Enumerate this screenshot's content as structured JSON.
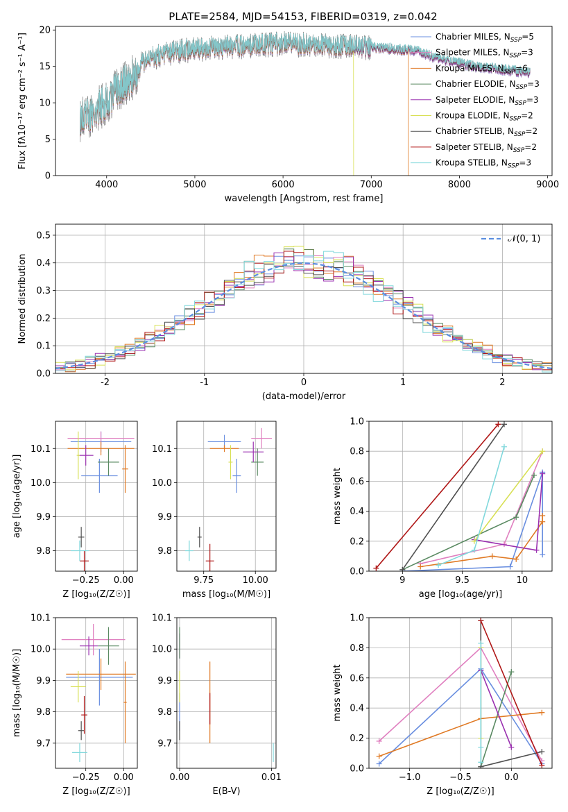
{
  "figure_title": "PLATE=2584, MJD=54153, FIBERID=0319, z=0.042",
  "colors": {
    "chabrier_miles": "#6a8fe0",
    "salpeter_miles": "#e080c0",
    "kroupa_miles": "#e07a25",
    "chabrier_elodie": "#5a8a62",
    "salpeter_elodie": "#9a30b0",
    "kroupa_elodie": "#d8e055",
    "chabrier_stelib": "#505050",
    "salpeter_stelib": "#b01818",
    "kroupa_stelib": "#80d8dc",
    "normal_curve": "#5b8ee0",
    "grid": "#b0b0b0"
  },
  "legend_spectrum": [
    {
      "text": "Chabrier MILES, N",
      "sub": "SSP",
      "tail": "=5",
      "color": "#6a8fe0"
    },
    {
      "text": "Salpeter MILES, N",
      "sub": "SSP",
      "tail": "=3",
      "color": "#e080c0"
    },
    {
      "text": "Kroupa MILES, N",
      "sub": "SSP",
      "tail": "=6",
      "color": "#e07a25"
    },
    {
      "text": "Chabrier ELODIE, N",
      "sub": "SSP",
      "tail": "=3",
      "color": "#5a8a62"
    },
    {
      "text": "Salpeter ELODIE, N",
      "sub": "SSP",
      "tail": "=3",
      "color": "#9a30b0"
    },
    {
      "text": "Kroupa ELODIE, N",
      "sub": "SSP",
      "tail": "=2",
      "color": "#d8e055"
    },
    {
      "text": "Chabrier STELIB, N",
      "sub": "SSP",
      "tail": "=2",
      "color": "#505050"
    },
    {
      "text": "Salpeter STELIB, N",
      "sub": "SSP",
      "tail": "=2",
      "color": "#b01818"
    },
    {
      "text": "Kroupa STELIB, N",
      "sub": "SSP",
      "tail": "=3",
      "color": "#80d8dc"
    }
  ],
  "chart_data": [
    {
      "type": "line",
      "title": "PLATE=2584, MJD=54153, FIBERID=0319, z=0.042",
      "xlabel": "wavelength [Angstrom, rest frame]",
      "ylabel": "Flux [fλ10⁻¹⁷ erg cm⁻² s⁻¹ A⁻¹]",
      "xlim": [
        3420,
        9050
      ],
      "ylim": [
        0,
        20.5
      ],
      "xticks": [
        4000,
        5000,
        6000,
        7000,
        8000,
        9000
      ],
      "yticks": [
        0,
        5,
        10,
        15,
        20
      ],
      "continuum": {
        "x": [
          3700,
          3800,
          3900,
          4000,
          4100,
          4200,
          4300,
          4400,
          4500,
          4700,
          5000,
          5300,
          5600,
          6000,
          6500,
          7000,
          7500,
          7800,
          8200,
          8800
        ],
        "y": [
          8.0,
          8.5,
          9.5,
          10.5,
          11.8,
          12.8,
          13.8,
          15.5,
          16.3,
          17.0,
          17.5,
          17.8,
          18.0,
          18.3,
          18.0,
          17.7,
          17.2,
          16.0,
          15.0,
          14.2
        ]
      },
      "features": [
        {
          "series": "kroupa_elodie",
          "description_x": 6800,
          "drop_to": 0
        },
        {
          "series": "kroupa_miles",
          "description_x": 7420,
          "drop_to": 0
        }
      ],
      "legend": "upper right"
    },
    {
      "type": "line",
      "xlabel": "(data-model)/error",
      "ylabel": "Normed distribution",
      "xlim": [
        -2.5,
        2.5
      ],
      "ylim": [
        0,
        0.54
      ],
      "xticks": [
        -2,
        -1,
        0,
        1,
        2
      ],
      "yticks": [
        0.0,
        0.1,
        0.2,
        0.3,
        0.4,
        0.5
      ],
      "bin_edges_start": -2.5,
      "bin_width": 0.1,
      "histogram_sigma": 1.0,
      "normal_legend": "𝒩(0, 1)",
      "legend": "upper right"
    },
    {
      "type": "scatter",
      "xlabel": "Z [log₁₀(Z/Z☉)]",
      "ylabel": "age  [log₁₀(age/yr)]",
      "xlim": [
        -0.45,
        0.09
      ],
      "ylim": [
        9.74,
        10.18
      ],
      "xticks": [
        -0.25,
        0.0
      ],
      "xtick_labels": [
        "−0.25",
        "0.00"
      ],
      "yticks": [
        9.8,
        9.9,
        10.0,
        10.1
      ],
      "points": [
        {
          "series": "chabrier_miles",
          "x": -0.16,
          "y": 10.02,
          "xerr": 0.12,
          "yerr": 0.05
        },
        {
          "series": "chabrier_miles",
          "x": -0.15,
          "y": 10.12,
          "xerr": 0.2,
          "yerr": 0.03
        },
        {
          "series": "salpeter_miles",
          "x": -0.15,
          "y": 10.13,
          "xerr": 0.22,
          "yerr": 0.02
        },
        {
          "series": "kroupa_miles",
          "x": 0.01,
          "y": 10.04,
          "xerr": 0.02,
          "yerr": 0.07
        },
        {
          "series": "kroupa_miles",
          "x": -0.15,
          "y": 10.1,
          "xerr": 0.22,
          "yerr": 0.02
        },
        {
          "series": "chabrier_elodie",
          "x": -0.1,
          "y": 10.06,
          "xerr": 0.07,
          "yerr": 0.04
        },
        {
          "series": "salpeter_elodie",
          "x": -0.25,
          "y": 10.08,
          "xerr": 0.05,
          "yerr": 0.03
        },
        {
          "series": "kroupa_elodie",
          "x": -0.3,
          "y": 10.08,
          "xerr": 0.01,
          "yerr": 0.07
        },
        {
          "series": "chabrier_stelib",
          "x": -0.28,
          "y": 9.84,
          "xerr": 0.02,
          "yerr": 0.03
        },
        {
          "series": "salpeter_stelib",
          "x": -0.26,
          "y": 9.77,
          "xerr": 0.03,
          "yerr": 0.03
        },
        {
          "series": "kroupa_stelib",
          "x": -0.29,
          "y": 9.8,
          "xerr": 0.06,
          "yerr": 0.03
        }
      ]
    },
    {
      "type": "scatter",
      "xlabel": "mass [log₁₀(M/M☉)]",
      "ylabel": "",
      "xlim": [
        9.62,
        10.1
      ],
      "ylim": [
        9.74,
        10.18
      ],
      "xticks": [
        9.75,
        10.0
      ],
      "xtick_labels": [
        "9.75",
        "10.00"
      ],
      "yticks": [
        9.8,
        9.9,
        10.0,
        10.1
      ],
      "points": [
        {
          "series": "chabrier_miles",
          "x": 9.91,
          "y": 10.02,
          "xerr": 0.02,
          "yerr": 0.05
        },
        {
          "series": "chabrier_miles",
          "x": 9.85,
          "y": 10.12,
          "xerr": 0.08,
          "yerr": 0.02
        },
        {
          "series": "salpeter_miles",
          "x": 10.03,
          "y": 10.13,
          "xerr": 0.05,
          "yerr": 0.03
        },
        {
          "series": "kroupa_miles",
          "x": 9.85,
          "y": 10.1,
          "xerr": 0.07,
          "yerr": 0.01
        },
        {
          "series": "chabrier_elodie",
          "x": 10.01,
          "y": 10.06,
          "xerr": 0.03,
          "yerr": 0.04
        },
        {
          "series": "salpeter_elodie",
          "x": 9.99,
          "y": 10.09,
          "xerr": 0.05,
          "yerr": 0.03
        },
        {
          "series": "kroupa_elodie",
          "x": 9.88,
          "y": 10.06,
          "xerr": 0.01,
          "yerr": 0.05
        },
        {
          "series": "chabrier_stelib",
          "x": 9.73,
          "y": 9.84,
          "xerr": 0.01,
          "yerr": 0.03
        },
        {
          "series": "salpeter_stelib",
          "x": 9.78,
          "y": 9.77,
          "xerr": 0.02,
          "yerr": 0.05
        },
        {
          "series": "kroupa_stelib",
          "x": 9.68,
          "y": 9.8,
          "xerr": 0.02,
          "yerr": 0.03
        }
      ]
    },
    {
      "type": "line",
      "xlabel": "age  [log₁₀(age/yr)]",
      "ylabel": "mass weight",
      "xlim": [
        8.72,
        10.25
      ],
      "ylim": [
        0,
        1.0
      ],
      "xticks": [
        9.0,
        9.5,
        10.0
      ],
      "yticks": [
        0.0,
        0.2,
        0.4,
        0.6,
        0.8,
        1.0
      ],
      "series": [
        {
          "name": "Chabrier MILES",
          "key": "chabrier_miles",
          "x": [
            9.0,
            9.9,
            10.17,
            10.17
          ],
          "y": [
            0.0,
            0.03,
            0.66,
            0.11
          ]
        },
        {
          "name": "Salpeter MILES",
          "key": "salpeter_miles",
          "x": [
            9.15,
            9.85,
            10.17
          ],
          "y": [
            0.05,
            0.18,
            0.8
          ]
        },
        {
          "name": "Kroupa MILES",
          "key": "kroupa_miles",
          "x": [
            9.15,
            9.75,
            9.95,
            10.17,
            10.17
          ],
          "y": [
            0.03,
            0.1,
            0.08,
            0.33,
            0.37
          ]
        },
        {
          "name": "Chabrier ELODIE",
          "key": "chabrier_elodie",
          "x": [
            9.0,
            9.95,
            10.1
          ],
          "y": [
            0.01,
            0.36,
            0.64
          ]
        },
        {
          "name": "Salpeter ELODIE",
          "key": "salpeter_elodie",
          "x": [
            9.6,
            10.12,
            10.17
          ],
          "y": [
            0.21,
            0.14,
            0.65
          ]
        },
        {
          "name": "Kroupa ELODIE",
          "key": "kroupa_elodie",
          "x": [
            9.6,
            10.17
          ],
          "y": [
            0.2,
            0.8
          ]
        },
        {
          "name": "Chabrier STELIB",
          "key": "chabrier_stelib",
          "x": [
            9.0,
            9.85
          ],
          "y": [
            0.01,
            0.98
          ]
        },
        {
          "name": "Salpeter STELIB",
          "key": "salpeter_stelib",
          "x": [
            8.78,
            9.8
          ],
          "y": [
            0.02,
            0.98
          ]
        },
        {
          "name": "Kroupa STELIB",
          "key": "kroupa_stelib",
          "x": [
            9.3,
            9.6,
            9.85
          ],
          "y": [
            0.04,
            0.14,
            0.83
          ]
        }
      ]
    },
    {
      "type": "scatter",
      "xlabel": "Z [log₁₀(Z/Z☉)]",
      "ylabel": "mass [log₁₀(M/M☉)]",
      "xlim": [
        -0.45,
        0.09
      ],
      "ylim": [
        9.62,
        10.1
      ],
      "xticks": [
        -0.25,
        0.0
      ],
      "xtick_labels": [
        "−0.25",
        "0.00"
      ],
      "yticks": [
        9.7,
        9.8,
        9.9,
        10.0,
        10.1
      ],
      "points": [
        {
          "series": "chabrier_miles",
          "x": -0.16,
          "y": 9.91,
          "xerr": 0.22,
          "yerr": 0.09
        },
        {
          "series": "salpeter_miles",
          "x": -0.2,
          "y": 10.03,
          "xerr": 0.21,
          "yerr": 0.05
        },
        {
          "series": "kroupa_miles",
          "x": -0.15,
          "y": 9.92,
          "xerr": 0.23,
          "yerr": 0.05
        },
        {
          "series": "kroupa_miles",
          "x": 0.01,
          "y": 9.83,
          "xerr": 0.01,
          "yerr": 0.13
        },
        {
          "series": "chabrier_elodie",
          "x": -0.1,
          "y": 10.01,
          "xerr": 0.07,
          "yerr": 0.06
        },
        {
          "series": "salpeter_elodie",
          "x": -0.23,
          "y": 10.01,
          "xerr": 0.06,
          "yerr": 0.03
        },
        {
          "series": "kroupa_elodie",
          "x": -0.3,
          "y": 9.88,
          "xerr": 0.05,
          "yerr": 0.05
        },
        {
          "series": "chabrier_stelib",
          "x": -0.28,
          "y": 9.74,
          "xerr": 0.02,
          "yerr": 0.03
        },
        {
          "series": "salpeter_stelib",
          "x": -0.26,
          "y": 9.79,
          "xerr": 0.02,
          "yerr": 0.06
        },
        {
          "series": "kroupa_stelib",
          "x": -0.29,
          "y": 9.67,
          "xerr": 0.05,
          "yerr": 0.03
        }
      ]
    },
    {
      "type": "scatter",
      "xlabel": "E(B-V)",
      "ylabel": "",
      "xlim": [
        -0.0003,
        0.0105
      ],
      "ylim": [
        9.62,
        10.1
      ],
      "xticks": [
        0.0,
        0.01
      ],
      "xtick_labels": [
        "0.00",
        "0.01"
      ],
      "yticks": [
        9.7,
        9.8,
        9.9,
        10.0,
        10.1
      ],
      "points": [
        {
          "series": "chabrier_miles",
          "x": 0.0,
          "y": 9.8,
          "xerr": 0.0,
          "yerr": 0.06
        },
        {
          "series": "salpeter_elodie",
          "x": 0.0,
          "y": 10.01,
          "xerr": 0.0,
          "yerr": 0.04
        },
        {
          "series": "kroupa_elodie",
          "x": 0.0,
          "y": 9.88,
          "xerr": 0.0,
          "yerr": 0.05
        },
        {
          "series": "chabrier_stelib",
          "x": 0.0,
          "y": 9.74,
          "xerr": 0.0,
          "yerr": 0.03
        },
        {
          "series": "chabrier_elodie",
          "x": 0.0,
          "y": 10.02,
          "xerr": 0.0,
          "yerr": 0.05
        },
        {
          "series": "kroupa_miles",
          "x": 0.0033,
          "y": 9.83,
          "xerr": 0.0,
          "yerr": 0.13
        },
        {
          "series": "salpeter_stelib",
          "x": 0.0033,
          "y": 9.81,
          "xerr": 0.0,
          "yerr": 0.05
        },
        {
          "series": "kroupa_stelib",
          "x": 0.0102,
          "y": 9.67,
          "xerr": 0.0,
          "yerr": 0.03
        }
      ]
    },
    {
      "type": "line",
      "xlabel": "Z [log₁₀(Z/Z☉)]",
      "ylabel": "mass weight",
      "xlim": [
        -1.4,
        0.4
      ],
      "ylim": [
        0,
        1.0
      ],
      "xticks": [
        -1.0,
        -0.5,
        0.0
      ],
      "xtick_labels": [
        "−1.0",
        "−0.5",
        "0.0"
      ],
      "yticks": [
        0.0,
        0.2,
        0.4,
        0.6,
        0.8,
        1.0
      ],
      "series": [
        {
          "name": "Chabrier MILES",
          "key": "chabrier_miles",
          "x": [
            -1.3,
            -0.3,
            0.3
          ],
          "y": [
            0.03,
            0.66,
            0.03
          ]
        },
        {
          "name": "Salpeter MILES",
          "key": "salpeter_miles",
          "x": [
            -1.3,
            -0.3,
            0.3
          ],
          "y": [
            0.18,
            0.8,
            0.05
          ]
        },
        {
          "name": "Kroupa MILES",
          "key": "kroupa_miles",
          "x": [
            -1.3,
            -0.3,
            0.3
          ],
          "y": [
            0.08,
            0.33,
            0.37
          ]
        },
        {
          "name": "Chabrier ELODIE",
          "key": "chabrier_elodie",
          "x": [
            -0.3,
            0.0
          ],
          "y": [
            0.01,
            0.64
          ]
        },
        {
          "name": "Salpeter ELODIE",
          "key": "salpeter_elodie",
          "x": [
            -0.3,
            0.0
          ],
          "y": [
            0.65,
            0.14
          ]
        },
        {
          "name": "Kroupa ELODIE",
          "key": "kroupa_elodie",
          "x": [
            -0.3,
            -0.3
          ],
          "y": [
            0.2,
            0.8
          ]
        },
        {
          "name": "Chabrier STELIB",
          "key": "chabrier_stelib",
          "x": [
            -0.3,
            -0.3,
            0.3
          ],
          "y": [
            0.98,
            0.01,
            0.11
          ]
        },
        {
          "name": "Salpeter STELIB",
          "key": "salpeter_stelib",
          "x": [
            -0.3,
            0.3
          ],
          "y": [
            0.98,
            0.02
          ]
        },
        {
          "name": "Kroupa STELIB",
          "key": "kroupa_stelib",
          "x": [
            -0.3,
            -0.3,
            -0.3
          ],
          "y": [
            0.83,
            0.14,
            0.04
          ]
        }
      ]
    }
  ]
}
